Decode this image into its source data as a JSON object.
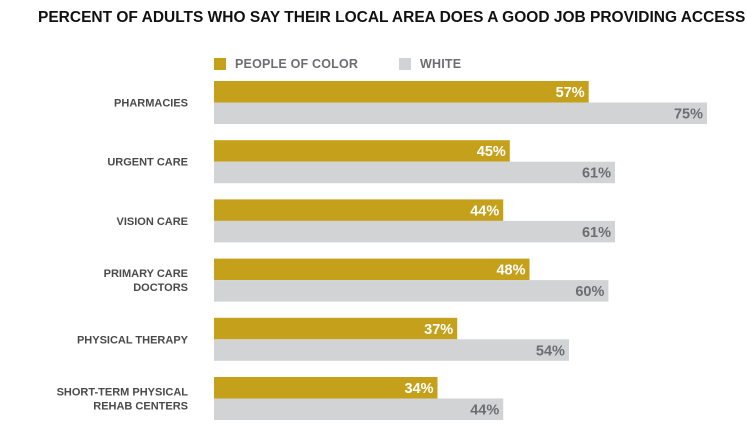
{
  "chart_data": {
    "type": "bar",
    "orientation": "horizontal",
    "title": "PERCENT OF ADULTS WHO SAY THEIR LOCAL AREA DOES A GOOD JOB PROVIDING ACCESS",
    "categories": [
      [
        "PHARMACIES"
      ],
      [
        "URGENT CARE"
      ],
      [
        "VISION CARE"
      ],
      [
        "PRIMARY CARE",
        "DOCTORS"
      ],
      [
        "PHYSICAL THERAPY"
      ],
      [
        "SHORT-TERM PHYSICAL",
        "REHAB CENTERS"
      ]
    ],
    "series": [
      {
        "name": "PEOPLE OF COLOR",
        "color": "#c5a11b",
        "label_color": "#ffffff",
        "values": [
          57,
          45,
          44,
          48,
          37,
          34
        ]
      },
      {
        "name": "WHITE",
        "color": "#d1d3d4",
        "label_color": "#6d6e71",
        "values": [
          75,
          61,
          61,
          60,
          54,
          44
        ]
      }
    ],
    "value_suffix": "%",
    "xlim": [
      0,
      75
    ],
    "grid": false,
    "legend_position": "top",
    "xlabel": "",
    "ylabel": ""
  }
}
